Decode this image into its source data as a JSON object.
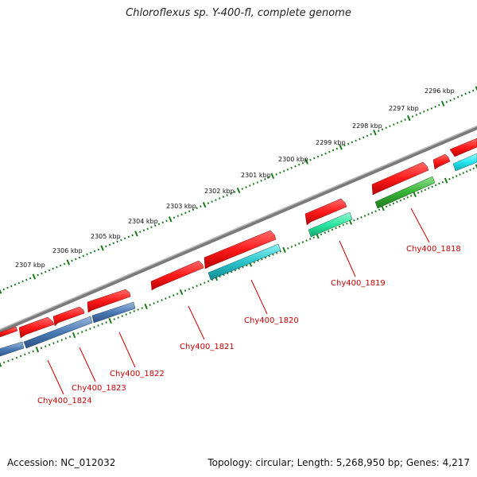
{
  "title": "Chloroflexus sp. Y-400-fl, complete genome",
  "footer": {
    "accession": "Accession: NC_012032",
    "summary": "Topology: circular; Length: 5,268,950 bp; Genes: 4,217"
  },
  "colors": {
    "backbone": "#7a7a7a",
    "tick_dots": "#1a7a1a",
    "label": "#cc0000",
    "cds_forward": "#ff1a1a",
    "teal": "#2ac4cc",
    "steel_blue": "#4a7ab4",
    "spring_green": "#2ae6a0",
    "green": "#34b434",
    "cyan": "#22e6f0"
  },
  "scale_ticks": [
    "2296 kbp",
    "2297 kbp",
    "2298 kbp",
    "2299 kbp",
    "2300 kbp",
    "2301 kbp",
    "2302 kbp",
    "2303 kbp",
    "2304 kbp",
    "2305 kbp",
    "2306 kbp",
    "2307 kbp"
  ],
  "gene_labels": [
    "Chy400_1818",
    "Chy400_1819",
    "Chy400_1820",
    "Chy400_1821",
    "Chy400_1822",
    "Chy400_1823",
    "Chy400_1824"
  ]
}
